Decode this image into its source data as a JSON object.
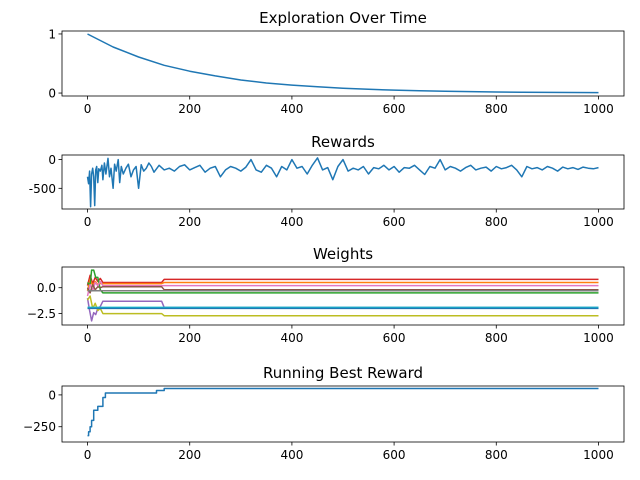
{
  "chart_data": [
    {
      "type": "line",
      "title": "Exploration Over Time",
      "xlabel": "",
      "ylabel": "",
      "xlim": [
        -50,
        1050
      ],
      "ylim": [
        -0.05,
        1.05
      ],
      "xticks": [
        0,
        200,
        400,
        600,
        800,
        1000
      ],
      "yticks": [
        0,
        1
      ],
      "grid": false,
      "series": [
        {
          "color": "#1f77b4",
          "x": [
            0,
            50,
            100,
            150,
            200,
            250,
            300,
            350,
            400,
            450,
            500,
            550,
            600,
            650,
            700,
            750,
            800,
            850,
            900,
            950,
            1000
          ],
          "y": [
            1.0,
            0.78,
            0.61,
            0.47,
            0.37,
            0.29,
            0.22,
            0.17,
            0.135,
            0.105,
            0.082,
            0.064,
            0.05,
            0.039,
            0.03,
            0.024,
            0.018,
            0.014,
            0.011,
            0.009,
            0.007
          ]
        }
      ]
    },
    {
      "type": "line",
      "title": "Rewards",
      "xlabel": "",
      "ylabel": "",
      "xlim": [
        -50,
        1050
      ],
      "ylim": [
        -860,
        80
      ],
      "xticks": [
        0,
        200,
        400,
        600,
        800,
        1000
      ],
      "yticks": [
        0,
        -500
      ],
      "grid": false,
      "series": [
        {
          "color": "#1f77b4",
          "x": [
            0,
            2,
            4,
            6,
            8,
            10,
            12,
            14,
            16,
            18,
            20,
            22,
            25,
            28,
            30,
            33,
            36,
            40,
            43,
            46,
            50,
            53,
            56,
            60,
            63,
            66,
            70,
            75,
            80,
            85,
            90,
            95,
            100,
            105,
            110,
            115,
            120,
            125,
            130,
            140,
            150,
            160,
            170,
            180,
            190,
            200,
            210,
            220,
            230,
            240,
            250,
            260,
            270,
            280,
            290,
            300,
            310,
            320,
            330,
            340,
            350,
            360,
            370,
            380,
            390,
            400,
            410,
            420,
            430,
            440,
            450,
            460,
            470,
            480,
            490,
            500,
            510,
            520,
            530,
            540,
            550,
            560,
            570,
            580,
            590,
            600,
            610,
            620,
            630,
            640,
            650,
            660,
            670,
            680,
            690,
            700,
            710,
            720,
            730,
            740,
            750,
            760,
            770,
            780,
            790,
            800,
            810,
            820,
            830,
            840,
            850,
            860,
            870,
            880,
            890,
            900,
            910,
            920,
            930,
            940,
            950,
            960,
            970,
            980,
            990,
            1000
          ],
          "y": [
            -300,
            -420,
            -200,
            -820,
            -250,
            -150,
            -300,
            -800,
            -180,
            -120,
            -400,
            -160,
            -200,
            -100,
            -350,
            -60,
            -250,
            20,
            -300,
            -150,
            -500,
            -80,
            -200,
            0,
            -400,
            -120,
            -250,
            -150,
            -80,
            -300,
            -180,
            -120,
            -500,
            -90,
            -200,
            -150,
            -60,
            -120,
            -220,
            -100,
            -180,
            -150,
            -200,
            -120,
            -90,
            -180,
            -140,
            -100,
            -220,
            -150,
            -120,
            -300,
            -180,
            -120,
            -150,
            -200,
            -130,
            0,
            -180,
            -220,
            -100,
            -150,
            -300,
            -120,
            -180,
            0,
            -150,
            -120,
            -250,
            -100,
            30,
            -180,
            -140,
            -350,
            -120,
            0,
            -200,
            -150,
            -180,
            -120,
            -250,
            -140,
            -160,
            -100,
            -180,
            -120,
            -220,
            -140,
            -150,
            -100,
            -180,
            -260,
            -120,
            -150,
            0,
            -180,
            -120,
            -150,
            -200,
            -140,
            -100,
            -180,
            -150,
            -130,
            -200,
            -120,
            -160,
            -140,
            -100,
            -180,
            -300,
            -120,
            -160,
            -140,
            -180,
            -120,
            -150,
            -200,
            -130,
            -160,
            -140,
            -170,
            -130,
            -150,
            -160,
            -140
          ]
        }
      ]
    },
    {
      "type": "line",
      "title": "Weights",
      "xlabel": "",
      "ylabel": "",
      "xlim": [
        -50,
        1050
      ],
      "ylim": [
        -3.6,
        2.0
      ],
      "xticks": [
        0,
        200,
        400,
        600,
        800,
        1000
      ],
      "yticks": [
        0.0,
        -2.5
      ],
      "ytick_labels": [
        "0.0",
        "−2.5"
      ],
      "grid": false,
      "series": [
        {
          "color": "#d62728",
          "x": [
            0,
            5,
            10,
            15,
            20,
            25,
            30,
            35,
            40,
            145,
            150,
            1000
          ],
          "y": [
            0.2,
            1.2,
            0.4,
            1.0,
            0.6,
            0.9,
            0.5,
            0.5,
            0.5,
            0.5,
            0.8,
            0.8
          ]
        },
        {
          "color": "#ff7f0e",
          "x": [
            0,
            5,
            10,
            15,
            20,
            25,
            30,
            145,
            150,
            1000
          ],
          "y": [
            -0.3,
            0.8,
            0.2,
            0.6,
            0.3,
            0.4,
            0.4,
            0.4,
            0.5,
            0.5
          ]
        },
        {
          "color": "#2ca02c",
          "x": [
            0,
            5,
            8,
            12,
            16,
            20,
            25,
            30,
            35,
            1000
          ],
          "y": [
            0.5,
            0.2,
            1.7,
            1.7,
            1.0,
            1.0,
            -0.2,
            -0.5,
            -0.5,
            -0.5
          ]
        },
        {
          "color": "#e377c2",
          "x": [
            0,
            5,
            10,
            15,
            20,
            25,
            30,
            35,
            145,
            150,
            1000
          ],
          "y": [
            -0.8,
            0.3,
            -0.3,
            0.5,
            0.2,
            0.6,
            0.2,
            0.2,
            0.2,
            0.2,
            0.2
          ]
        },
        {
          "color": "#8c564b",
          "x": [
            0,
            5,
            10,
            15,
            20,
            25,
            30,
            145,
            150,
            1000
          ],
          "y": [
            0.0,
            -0.5,
            0.3,
            -0.2,
            0.1,
            0.0,
            0.1,
            0.1,
            -0.2,
            -0.2
          ]
        },
        {
          "color": "#7f7f7f",
          "x": [
            0,
            10,
            20,
            30,
            145,
            150,
            1000
          ],
          "y": [
            -0.3,
            -0.3,
            -0.3,
            -0.3,
            -0.3,
            -0.3,
            -0.3
          ]
        },
        {
          "color": "#9467bd",
          "x": [
            0,
            4,
            8,
            12,
            16,
            20,
            25,
            30,
            35,
            145,
            150,
            1000
          ],
          "y": [
            -1.0,
            -2.2,
            -3.2,
            -2.4,
            -2.6,
            -2.0,
            -1.8,
            -1.3,
            -1.3,
            -1.3,
            -1.9,
            -1.9
          ]
        },
        {
          "color": "#bcbd22",
          "x": [
            0,
            5,
            10,
            15,
            20,
            25,
            30,
            35,
            145,
            150,
            1000
          ],
          "y": [
            -1.2,
            -0.8,
            -2.0,
            -1.5,
            -2.2,
            -2.0,
            -2.5,
            -2.5,
            -2.5,
            -2.7,
            -2.7
          ]
        },
        {
          "color": "#17becf",
          "x": [
            0,
            10,
            20,
            30,
            145,
            150,
            1000
          ],
          "y": [
            -1.9,
            -1.9,
            -1.9,
            -1.9,
            -1.9,
            -1.9,
            -1.9
          ]
        },
        {
          "color": "#1f77b4",
          "x": [
            0,
            10,
            20,
            30,
            145,
            150,
            1000
          ],
          "y": [
            -2.0,
            -2.0,
            -2.0,
            -2.0,
            -2.0,
            -2.0,
            -2.0
          ]
        }
      ]
    },
    {
      "type": "line",
      "title": "Running Best Reward",
      "xlabel": "",
      "ylabel": "",
      "xlim": [
        -50,
        1050
      ],
      "ylim": [
        -370,
        70
      ],
      "xticks": [
        0,
        200,
        400,
        600,
        800,
        1000
      ],
      "yticks": [
        0,
        -250
      ],
      "ytick_labels": [
        "0",
        "−250"
      ],
      "grid": false,
      "series": [
        {
          "color": "#1f77b4",
          "x": [
            0,
            2,
            2,
            5,
            5,
            8,
            8,
            12,
            12,
            20,
            20,
            30,
            30,
            35,
            35,
            135,
            135,
            150,
            150,
            1000
          ],
          "y": [
            -320,
            -320,
            -290,
            -290,
            -250,
            -250,
            -200,
            -200,
            -120,
            -120,
            -90,
            -90,
            -20,
            -20,
            15,
            15,
            35,
            35,
            50,
            50
          ]
        }
      ]
    }
  ]
}
